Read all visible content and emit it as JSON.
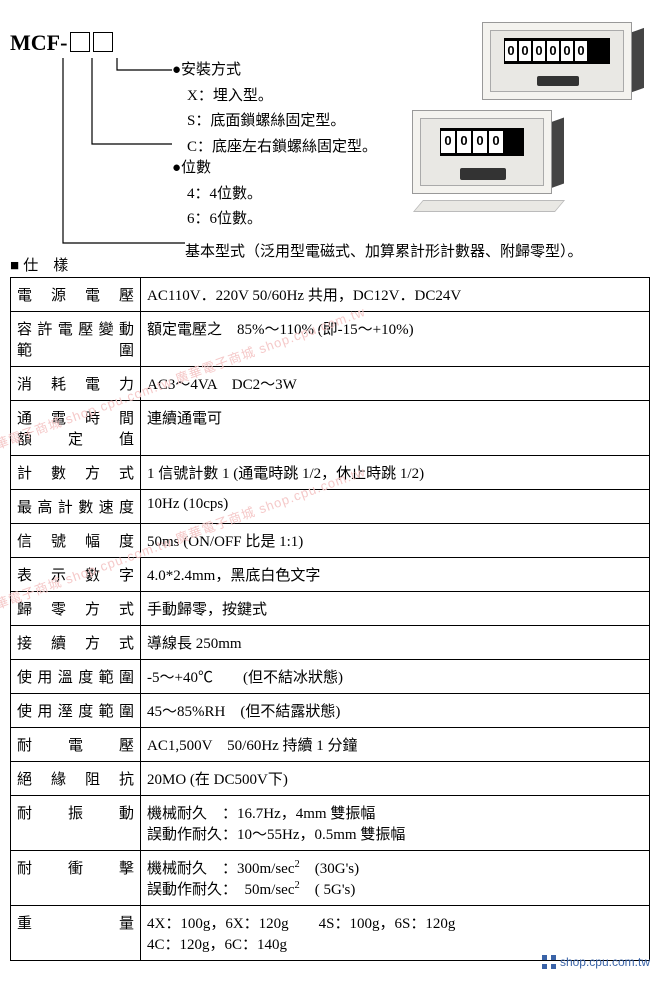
{
  "model": {
    "prefix": "MCF-"
  },
  "options": {
    "mount": {
      "head": "●安裝方式",
      "items": [
        {
          "code": "X",
          "text": "：埋入型。"
        },
        {
          "code": "S",
          "text": "：底面鎖螺絲固定型。"
        },
        {
          "code": "C",
          "text": "：底座左右鎖螺絲固定型。"
        }
      ]
    },
    "digits": {
      "head": "●位數",
      "items": [
        {
          "code": "4",
          "text": "：4位數。"
        },
        {
          "code": "6",
          "text": "：6位數。"
        }
      ]
    }
  },
  "basic_type": "基本型式（泛用型電磁式、加算累計形計數器、附歸零型）。",
  "spec_title": "仕　樣",
  "spec_rows": [
    {
      "label": "電　源　電　壓",
      "value": "AC110V．220V 50/60Hz 共用，DC12V．DC24V"
    },
    {
      "label": "容許電壓變動\n範　　　　圍",
      "value": "額定電壓之　85%～110% (即-15～+10%)"
    },
    {
      "label": "消　耗　電　力",
      "value": "AC3～4VA　DC2～3W"
    },
    {
      "label": "通　電　時　間\n額　　定　　值",
      "value": "連續通電可"
    },
    {
      "label": "計　數　方　式",
      "value": "1 信號計數 1 (通電時跳 1/2，休止時跳 1/2)"
    },
    {
      "label": "最高計數速度",
      "value": "10Hz (10cps)"
    },
    {
      "label": "信　號　幅　度",
      "value": "50ms (ON/OFF 比是 1:1)"
    },
    {
      "label": "表　示　數　字",
      "value": "4.0*2.4mm，黑底白色文字"
    },
    {
      "label": "歸　零　方　式",
      "value": "手動歸零，按鍵式"
    },
    {
      "label": "接　續　方　式",
      "value": "導線長 250mm"
    },
    {
      "label": "使用溫度範圍",
      "value": "-5～+40℃　　(但不結冰狀態)"
    },
    {
      "label": "使用溼度範圍",
      "value": "45～85%RH　(但不結露狀態)"
    },
    {
      "label": "耐　　電　　壓",
      "value": "AC1,500V　50/60Hz 持續 1 分鐘"
    },
    {
      "label": "絕　緣　阻　抗",
      "value": "20MO (在 DC500V下)"
    },
    {
      "label": "耐　　振　　動",
      "value": "機械耐久　：16.7Hz，4mm 雙振幅\n誤動作耐久：10～55Hz，0.5mm 雙振幅"
    },
    {
      "label": "耐　　衝　　擊",
      "value": "機械耐久　：300m/sec²　(30G's)\n誤動作耐久：　50m/sec²　( 5G's)"
    },
    {
      "label": "重　　　　　量",
      "value": "4X：100g，6X：120g　　4S：100g，6S：120g\n4C：120g，6C：140g"
    }
  ],
  "devices": {
    "back": {
      "digits": [
        "0",
        "0",
        "0",
        "0",
        "0",
        "0"
      ]
    },
    "front": {
      "digits": [
        "0",
        "0",
        "0",
        "0"
      ]
    }
  },
  "footer": "shop.cpu.com.tw",
  "watermark_text": "廣華電子商城 shop.cpu.com.tw 廣華電子商城 shop.cpu.com.tw"
}
